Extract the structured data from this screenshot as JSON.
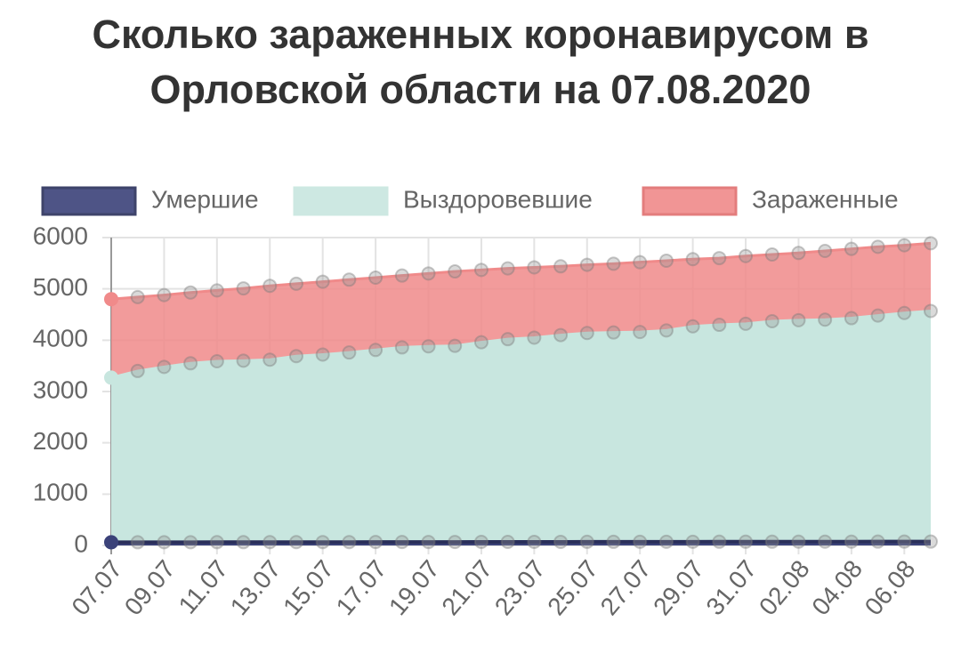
{
  "chart_data": {
    "type": "area",
    "title": "Сколько зараженных коронавирусом в Орловской области на 07.08.2020",
    "categories": [
      "07.07",
      null,
      "09.07",
      null,
      "11.07",
      null,
      "13.07",
      null,
      "15.07",
      null,
      "17.07",
      null,
      "19.07",
      null,
      "21.07",
      null,
      "23.07",
      null,
      "25.07",
      null,
      "27.07",
      null,
      "29.07",
      null,
      "31.07",
      null,
      "02.08",
      null,
      "04.08",
      null,
      "06.08",
      null
    ],
    "series": [
      {
        "name": "Умершие",
        "color": "#3b4279",
        "values": [
          62,
          62,
          63,
          63,
          64,
          64,
          65,
          65,
          66,
          66,
          67,
          67,
          68,
          68,
          69,
          69,
          70,
          70,
          71,
          71,
          72,
          72,
          72,
          73,
          73,
          73,
          74,
          74,
          74,
          75,
          75,
          75
        ]
      },
      {
        "name": "Выздоровевшие",
        "color": "#c8e6df",
        "values": [
          3270,
          3400,
          3480,
          3550,
          3590,
          3600,
          3620,
          3690,
          3720,
          3760,
          3810,
          3860,
          3880,
          3890,
          3960,
          4020,
          4050,
          4100,
          4140,
          4150,
          4160,
          4190,
          4270,
          4300,
          4320,
          4370,
          4390,
          4400,
          4430,
          4480,
          4530,
          4570
        ]
      },
      {
        "name": "Зараженные",
        "color": "#f08a8a",
        "values": [
          4800,
          4840,
          4880,
          4930,
          4970,
          5010,
          5060,
          5100,
          5140,
          5180,
          5220,
          5260,
          5300,
          5340,
          5370,
          5400,
          5420,
          5440,
          5470,
          5490,
          5520,
          5550,
          5580,
          5600,
          5640,
          5670,
          5700,
          5740,
          5780,
          5820,
          5850,
          5890
        ]
      }
    ],
    "ylim": [
      0,
      6000
    ],
    "yticks": [
      0,
      1000,
      2000,
      3000,
      4000,
      5000,
      6000
    ],
    "grid": true,
    "legend": "top"
  }
}
